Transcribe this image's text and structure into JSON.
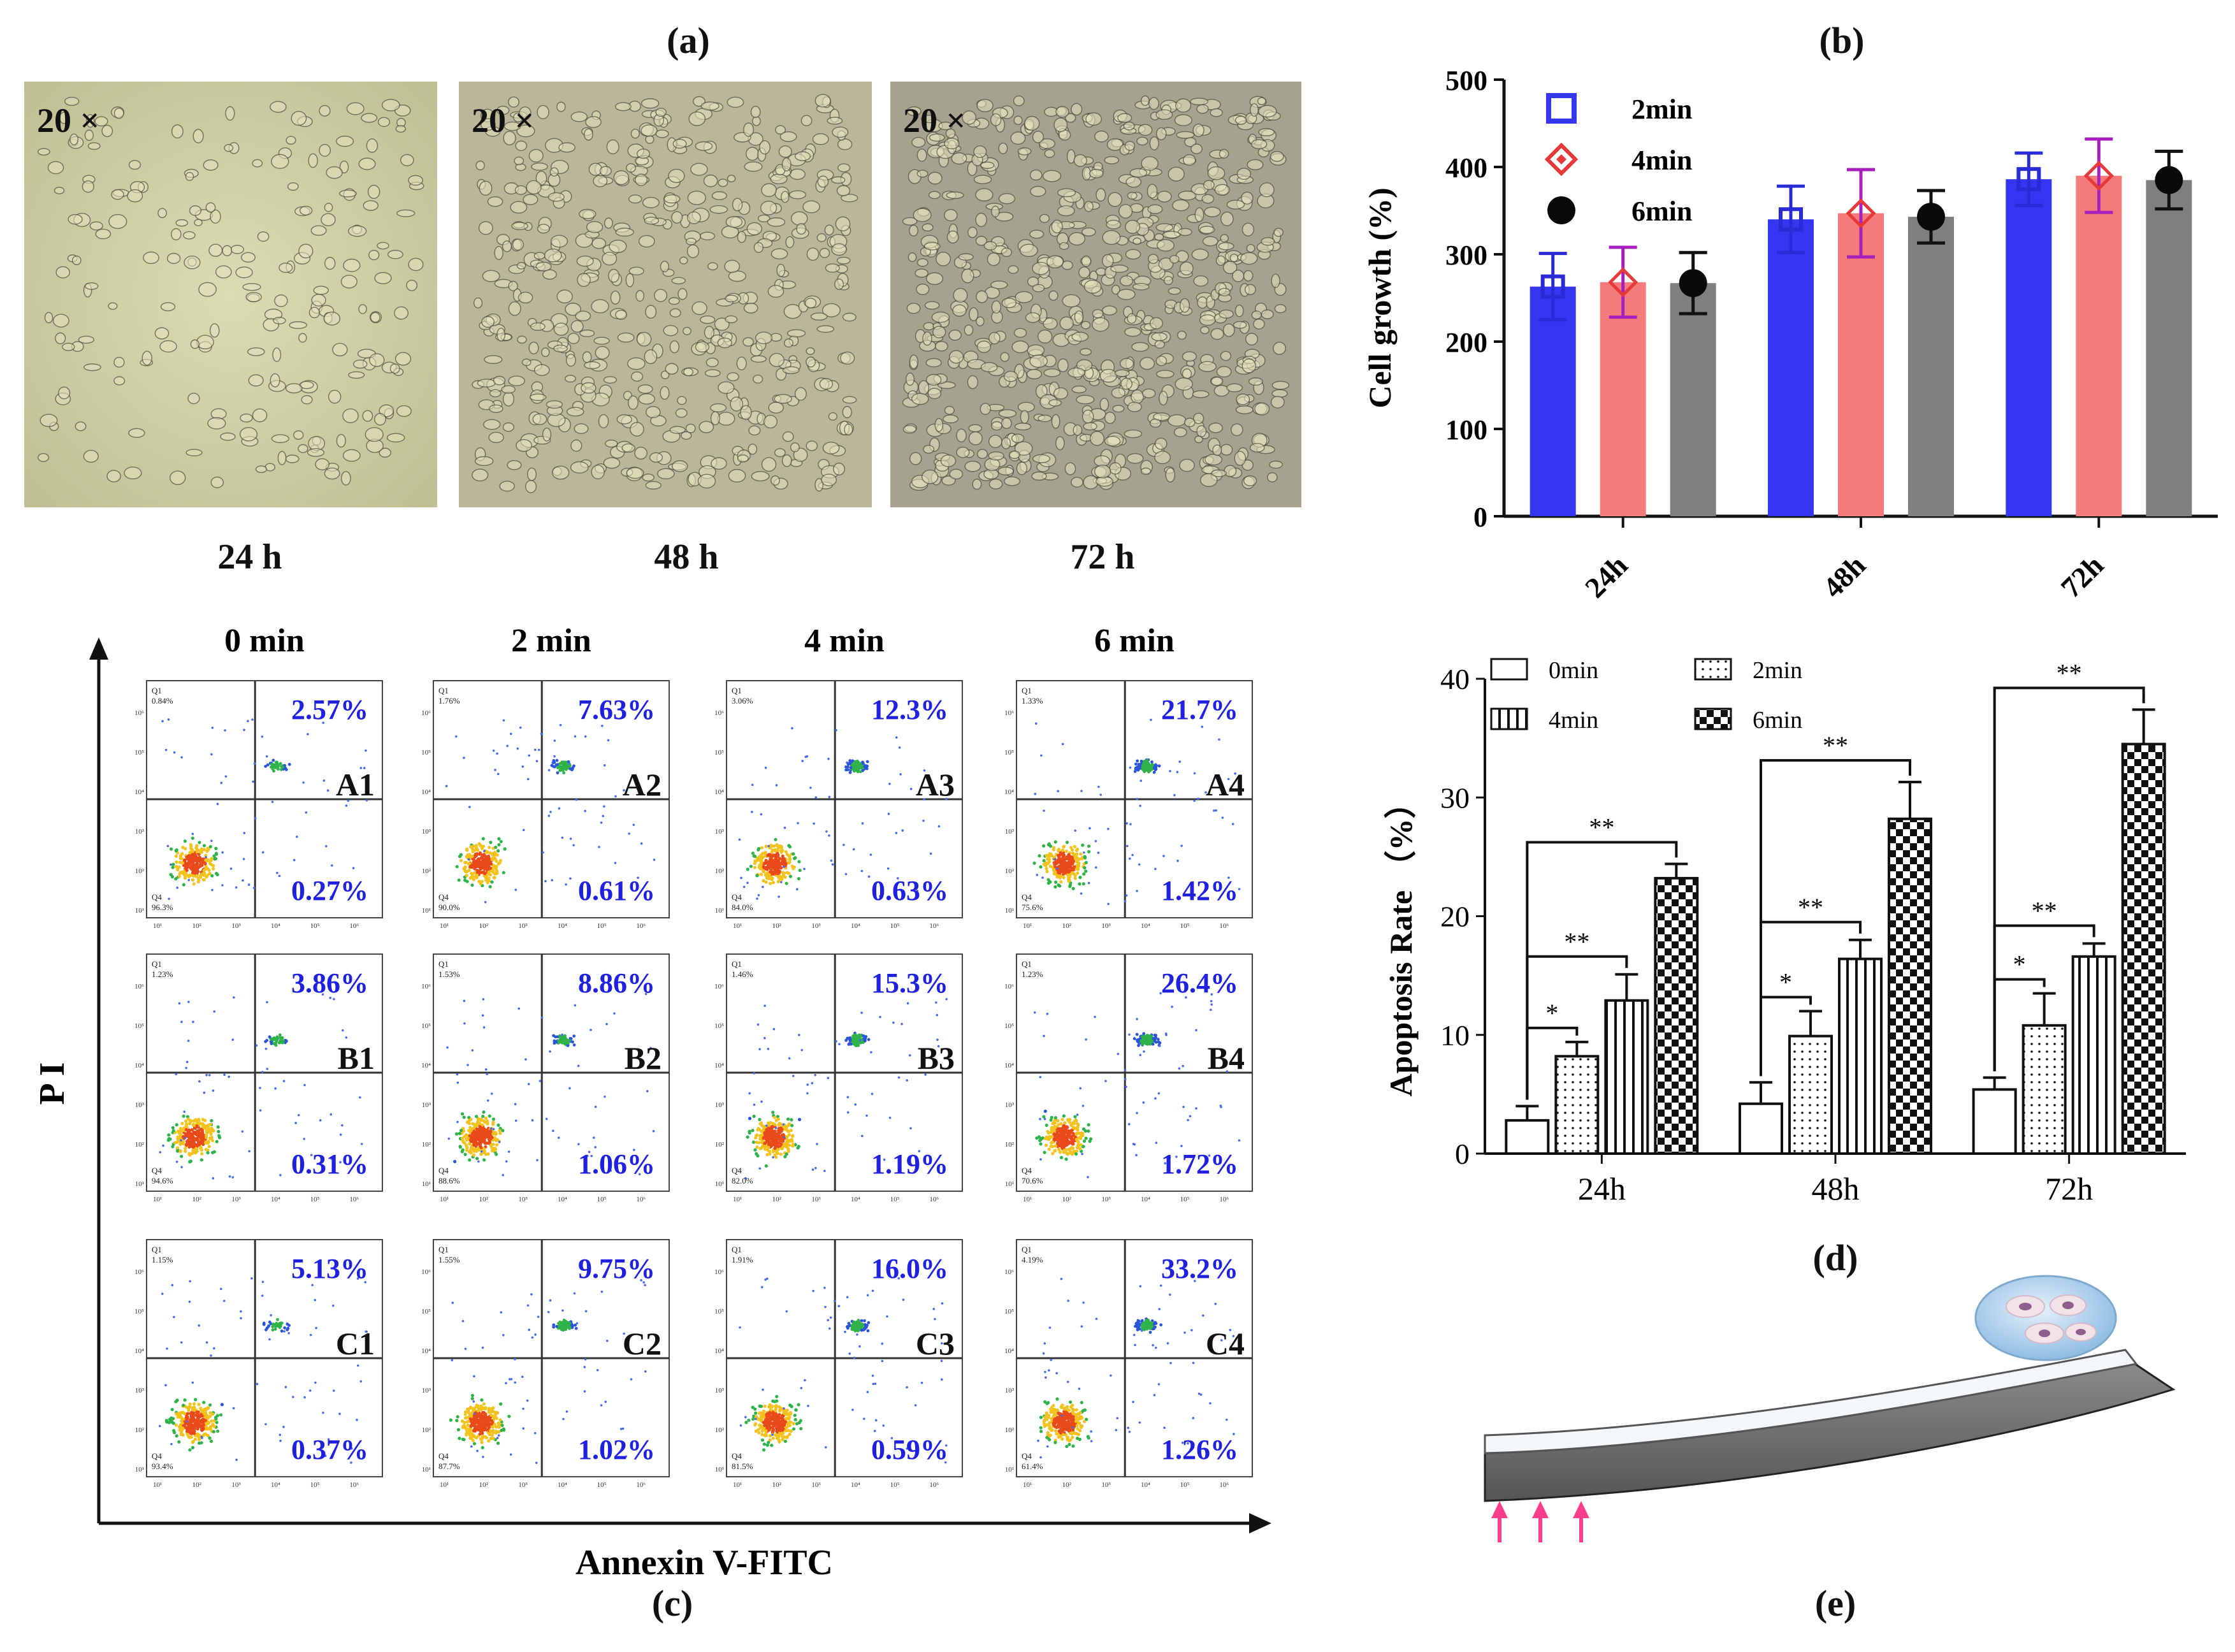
{
  "panels": {
    "a": {
      "label": "(a)",
      "images": [
        {
          "magnification": "20 ×",
          "time": "24 h"
        },
        {
          "magnification": "20 ×",
          "time": "48 h"
        },
        {
          "magnification": "20 ×",
          "time": "72 h"
        }
      ]
    },
    "b": {
      "label": "(b)"
    },
    "c": {
      "label": "(c)",
      "x_axis_label": "Annexin V-FITC",
      "y_axis_label": "P I",
      "columns": [
        "0  min",
        "2  min",
        "4  min",
        "6  min"
      ],
      "rows": [
        [
          {
            "id": "A1",
            "q1": "0.84%",
            "q2": "2.57%",
            "q3": "0.27%",
            "q4": "96.3%"
          },
          {
            "id": "A2",
            "q1": "1.76%",
            "q2": "7.63%",
            "q3": "0.61%",
            "q4": "90.0%"
          },
          {
            "id": "A3",
            "q1": "3.06%",
            "q2": "12.3%",
            "q3": "0.63%",
            "q4": "84.0%"
          },
          {
            "id": "A4",
            "q1": "1.33%",
            "q2": "21.7%",
            "q3": "1.42%",
            "q4": "75.6%"
          }
        ],
        [
          {
            "id": "B1",
            "q1": "1.23%",
            "q2": "3.86%",
            "q3": "0.31%",
            "q4": "94.6%"
          },
          {
            "id": "B2",
            "q1": "1.53%",
            "q2": "8.86%",
            "q3": "1.06%",
            "q4": "88.6%"
          },
          {
            "id": "B3",
            "q1": "1.46%",
            "q2": "15.3%",
            "q3": "1.19%",
            "q4": "82.0%"
          },
          {
            "id": "B4",
            "q1": "1.23%",
            "q2": "26.4%",
            "q3": "1.72%",
            "q4": "70.6%"
          }
        ],
        [
          {
            "id": "C1",
            "q1": "1.15%",
            "q2": "5.13%",
            "q3": "0.37%",
            "q4": "93.4%"
          },
          {
            "id": "C2",
            "q1": "1.55%",
            "q2": "9.75%",
            "q3": "1.02%",
            "q4": "87.7%"
          },
          {
            "id": "C3",
            "q1": "1.91%",
            "q2": "16.0%",
            "q3": "0.59%",
            "q4": "81.5%"
          },
          {
            "id": "C4",
            "q1": "4.19%",
            "q2": "33.2%",
            "q3": "1.26%",
            "q4": "61.4%"
          }
        ]
      ],
      "quadrant_q1_tag": "Q1",
      "quadrant_q4_tag": "Q4",
      "axis_tick_labels": [
        "10¹",
        "10²",
        "10³",
        "10⁴",
        "10⁵",
        "10⁶"
      ]
    },
    "d": {
      "label": "(d)"
    },
    "e": {
      "label": "(e)"
    }
  },
  "colors": {
    "blue": "#3535f2",
    "pink": "#f57b7b",
    "gray": "#7f7f7f",
    "percent_text": "#2020e0",
    "arrow": "#ff3d8c",
    "dish": "#a8cdea"
  },
  "chart_data": [
    {
      "panel": "b",
      "type": "bar",
      "title": "",
      "xlabel": "",
      "ylabel": "Cell  growth (%)",
      "ylim": [
        0,
        500
      ],
      "yticks": [
        0,
        100,
        200,
        300,
        400,
        500
      ],
      "categories": [
        "24h",
        "48h",
        "72h"
      ],
      "legend_position": "top-left",
      "series": [
        {
          "name": "2min",
          "marker": "square",
          "color": "#3535f2",
          "values": [
            263,
            340,
            386
          ],
          "errors": [
            38,
            38,
            30
          ]
        },
        {
          "name": "4min",
          "marker": "diamond",
          "color": "#f57b7b",
          "values": [
            268,
            347,
            390
          ],
          "errors": [
            40,
            50,
            42
          ]
        },
        {
          "name": "6min",
          "marker": "circle",
          "color": "#7f7f7f",
          "values": [
            267,
            343,
            385
          ],
          "errors": [
            35,
            30,
            33
          ]
        }
      ]
    },
    {
      "panel": "d",
      "type": "bar",
      "title": "",
      "xlabel": "",
      "ylabel": "Apoptosis Rate （%）",
      "ylim": [
        0,
        40
      ],
      "yticks": [
        0,
        10,
        20,
        30,
        40
      ],
      "categories": [
        "24h",
        "48h",
        "72h"
      ],
      "legend_position": "top",
      "series": [
        {
          "name": "0min",
          "pattern": "blank",
          "values": [
            2.8,
            4.2,
            5.4
          ],
          "errors": [
            1.2,
            1.8,
            1.0
          ]
        },
        {
          "name": "2min",
          "pattern": "dots",
          "values": [
            8.2,
            9.9,
            10.8
          ],
          "errors": [
            1.2,
            2.1,
            2.7
          ]
        },
        {
          "name": "4min",
          "pattern": "vertical-lines",
          "values": [
            12.9,
            16.4,
            16.6
          ],
          "errors": [
            2.2,
            1.6,
            1.1
          ]
        },
        {
          "name": "6min",
          "pattern": "checker",
          "values": [
            23.2,
            28.2,
            34.5
          ],
          "errors": [
            1.2,
            3.1,
            2.9
          ]
        }
      ],
      "annotations": [
        {
          "group": "24h",
          "from": "0min",
          "to": "2min",
          "text": "*"
        },
        {
          "group": "24h",
          "from": "0min",
          "to": "4min",
          "text": "**"
        },
        {
          "group": "24h",
          "from": "0min",
          "to": "6min",
          "text": "**"
        },
        {
          "group": "48h",
          "from": "0min",
          "to": "2min",
          "text": "*"
        },
        {
          "group": "48h",
          "from": "0min",
          "to": "4min",
          "text": "**"
        },
        {
          "group": "48h",
          "from": "0min",
          "to": "6min",
          "text": "**"
        },
        {
          "group": "72h",
          "from": "0min",
          "to": "2min",
          "text": "*"
        },
        {
          "group": "72h",
          "from": "0min",
          "to": "4min",
          "text": "**"
        },
        {
          "group": "72h",
          "from": "0min",
          "to": "6min",
          "text": "**"
        }
      ]
    }
  ]
}
